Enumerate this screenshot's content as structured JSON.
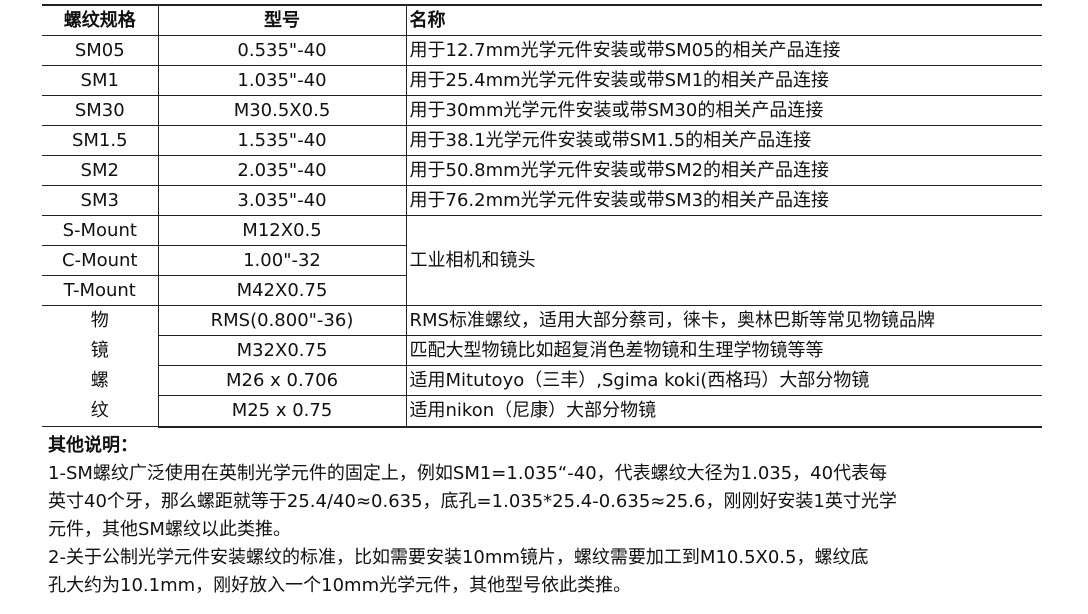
{
  "table": {
    "headers": [
      "螺纹规格",
      "型号",
      "名称"
    ],
    "rows": [
      {
        "spec": "SM05",
        "model": "0.535\"-40",
        "name": "用于12.7mm光学元件安装或带SM05的相关产品连接"
      },
      {
        "spec": "SM1",
        "model": "1.035\"-40",
        "name": "用于25.4mm光学元件安装或带SM1的相关产品连接"
      },
      {
        "spec": "SM30",
        "model": "M30.5X0.5",
        "name": "用于30mm光学元件安装或带SM30的相关产品连接"
      },
      {
        "spec": "SM1.5",
        "model": "1.535\"-40",
        "name": "用于38.1光学元件安装或带SM1.5的相关产品连接"
      },
      {
        "spec": "SM2",
        "model": "2.035\"-40",
        "name": "用于50.8mm光学元件安装或带SM2的相关产品连接"
      },
      {
        "spec": "SM3",
        "model": "3.035\"-40",
        "name": "用于76.2mm光学元件安装或带SM3的相关产品连接"
      },
      {
        "spec": "S-Mount",
        "model": "M12X0.5"
      },
      {
        "spec": "C-Mount",
        "model": "1.00\"-32"
      },
      {
        "spec": "T-Mount",
        "model": "M42X0.75"
      }
    ],
    "mount_group_name": "工业相机和镜头",
    "objective_group_label": [
      "物",
      "镜",
      "螺",
      "纹"
    ],
    "objective_rows": [
      {
        "model": "RMS(0.800\"-36)",
        "name": "RMS标准螺纹，适用大部分蔡司，徕卡，奥林巴斯等常见物镜品牌"
      },
      {
        "model": "M32X0.75",
        "name": "匹配大型物镜比如超复消色差物镜和生理学物镜等等"
      },
      {
        "model": "M26 x 0.706",
        "name": "适用Mitutoyo（三丰）,Sgima koki(西格玛）大部分物镜"
      },
      {
        "model": "M25 x 0.75",
        "name": "适用nikon（尼康）大部分物镜"
      }
    ]
  },
  "notes": {
    "title": "其他说明：",
    "lines": [
      "1-SM螺纹广泛使用在英制光学元件的固定上，例如SM1=1.035“-40，代表螺纹大径为1.035，40代表每",
      "英寸40个牙，那么螺距就等于25.4/40≈0.635，底孔=1.035*25.4-0.635≈25.6，刚刚好安装1英寸光学",
      "元件，其他SM螺纹以此类推。",
      "2-关于公制光学元件安装螺纹的标准，比如需要安装10mm镜片，螺纹需要加工到M10.5X0.5，螺纹底",
      "孔大约为10.1mm，刚好放入一个10mm光学元件，其他型号依此类推。"
    ]
  }
}
